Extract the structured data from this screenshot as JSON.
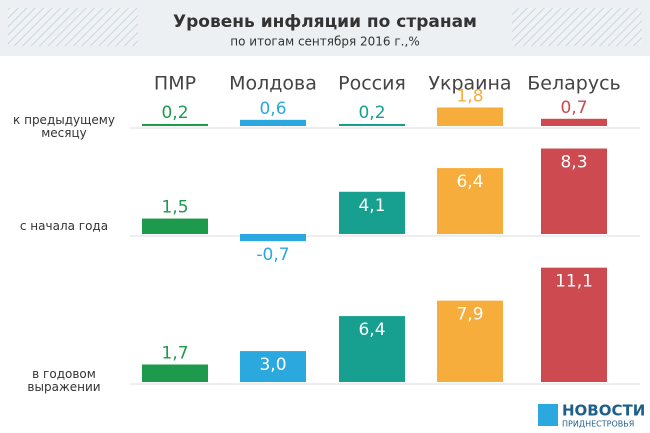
{
  "chart_data": {
    "type": "bar",
    "title": "Уровень инфляции по странам",
    "subtitle": "по итогам сентября 2016 г.,%",
    "categories": [
      "ПМР",
      "Молдова",
      "Россия",
      "Украина",
      "Беларусь"
    ],
    "colors": [
      "#1e9a4c",
      "#2ba8dd",
      "#17a090",
      "#f7ad3b",
      "#cd4a50"
    ],
    "series": [
      {
        "name": "к предыдущему месяцу",
        "values": [
          0.2,
          0.6,
          0.2,
          1.8,
          0.7
        ],
        "value_labels": [
          "0,2",
          "0,6",
          "0,2",
          "1,8",
          "0,7"
        ]
      },
      {
        "name": "с начала года",
        "values": [
          1.5,
          -0.7,
          4.1,
          6.4,
          8.3
        ],
        "value_labels": [
          "1,5",
          "-0,7",
          "4,1",
          "6,4",
          "8,3"
        ]
      },
      {
        "name": "в годовом выражении",
        "values": [
          1.7,
          3.0,
          6.4,
          7.9,
          11.1
        ],
        "value_labels": [
          "1,7",
          "3,0",
          "6,4",
          "7,9",
          "11,1"
        ]
      }
    ]
  },
  "logo": {
    "title": "НОВОСТИ",
    "subtitle": "ПРИДНЕСТРОВЬЯ"
  }
}
